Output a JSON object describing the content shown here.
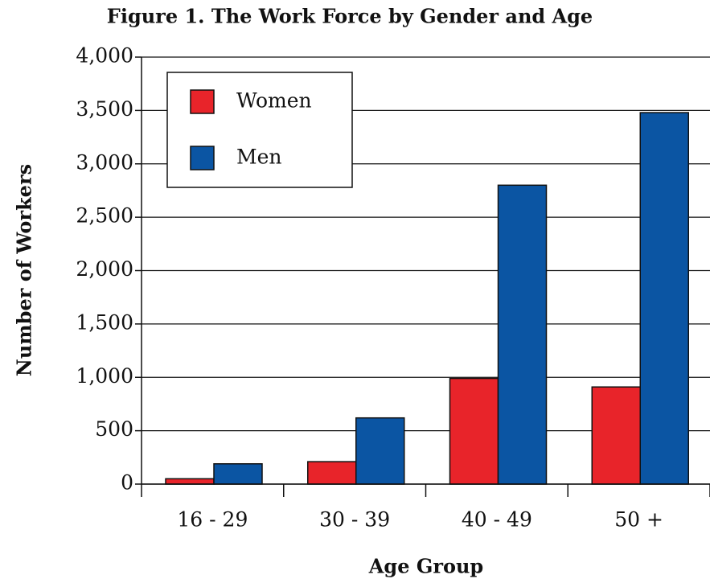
{
  "chart_data": {
    "type": "bar",
    "title": "Figure 1. The Work Force by Gender and Age",
    "x_label": "Age Group",
    "y_label": "Number of Workers",
    "categories": [
      "16 - 29",
      "30 - 39",
      "40 - 49",
      "50 +"
    ],
    "series": [
      {
        "name": "Women",
        "color": "#e8242a",
        "values": [
          50,
          210,
          990,
          910
        ]
      },
      {
        "name": "Men",
        "color": "#0b55a3",
        "values": [
          190,
          620,
          2800,
          3480
        ]
      }
    ],
    "ylim": [
      0,
      4000
    ],
    "yticks": [
      0,
      500,
      {
        "value": 1000,
        "label": "1,000"
      },
      {
        "value": 1500,
        "label": "1,500"
      },
      {
        "value": 2000,
        "label": "2,000"
      },
      {
        "value": 2500,
        "label": "2,500"
      },
      {
        "value": 3000,
        "label": "3,000"
      },
      {
        "value": 3500,
        "label": "3,500"
      },
      {
        "value": 4000,
        "label": "4,000"
      }
    ],
    "grid": true,
    "legend": "upper left"
  }
}
